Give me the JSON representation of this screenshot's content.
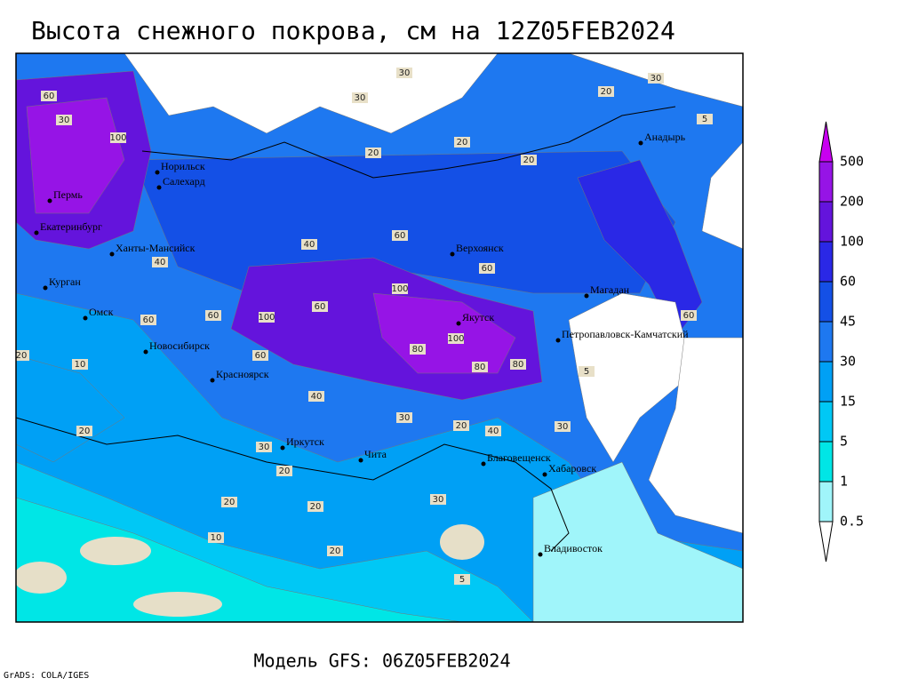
{
  "title": "Высота снежного покрова, см на 12Z05FEB2024",
  "model": "Модель GFS: 06Z05FEB2024",
  "credit": "GrADS: COLA/IGES",
  "legend": {
    "levels": [
      0.5,
      1,
      5,
      15,
      30,
      45,
      60,
      100,
      200,
      500
    ],
    "colors": [
      "#ffffff",
      "#a0f5fa",
      "#00e6e6",
      "#00c8f5",
      "#00a0f5",
      "#1e78f0",
      "#1450e6",
      "#2a28e6",
      "#6414dc",
      "#9614e6",
      "#c800f0"
    ]
  },
  "cities": [
    "Норильск",
    "Салехард",
    "Пермь",
    "Екатеринбург",
    "Ханты-Мансийск",
    "Курган",
    "Омск",
    "Новосибирск",
    "Красноярск",
    "Иркутск",
    "Чита",
    "Благовещенск",
    "Хабаровск",
    "Владивосток",
    "Якутск",
    "Верхоянск",
    "Магадан",
    "Петропавловск-Камчатский",
    "Анадырь"
  ],
  "contour_labels": [
    60,
    30,
    100,
    30,
    30,
    20,
    20,
    20,
    40,
    60,
    60,
    100,
    100,
    60,
    100,
    80,
    80,
    80,
    60,
    60,
    40,
    60,
    10,
    40,
    20,
    40,
    30,
    30,
    30,
    20,
    20,
    20,
    30,
    20,
    10,
    5,
    5,
    5,
    60,
    20,
    30,
    20,
    20
  ]
}
